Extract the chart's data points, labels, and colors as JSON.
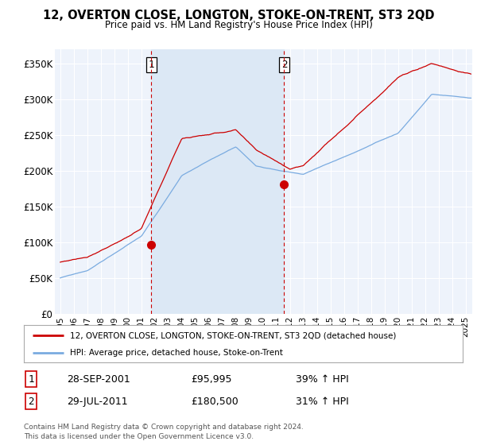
{
  "title": "12, OVERTON CLOSE, LONGTON, STOKE-ON-TRENT, ST3 2QD",
  "subtitle": "Price paid vs. HM Land Registry's House Price Index (HPI)",
  "legend_label_red": "12, OVERTON CLOSE, LONGTON, STOKE-ON-TRENT, ST3 2QD (detached house)",
  "legend_label_blue": "HPI: Average price, detached house, Stoke-on-Trent",
  "transaction1_date": "28-SEP-2001",
  "transaction1_price": "£95,995",
  "transaction1_hpi": "39% ↑ HPI",
  "transaction2_date": "29-JUL-2011",
  "transaction2_price": "£180,500",
  "transaction2_hpi": "31% ↑ HPI",
  "footer": "Contains HM Land Registry data © Crown copyright and database right 2024.\nThis data is licensed under the Open Government Licence v3.0.",
  "yticks": [
    0,
    50000,
    100000,
    150000,
    200000,
    250000,
    300000,
    350000
  ],
  "ytick_labels": [
    "£0",
    "£50K",
    "£100K",
    "£150K",
    "£200K",
    "£250K",
    "£300K",
    "£350K"
  ],
  "background_color": "#ffffff",
  "plot_bg_color": "#eef3fb",
  "grid_color": "#ffffff",
  "red_color": "#cc0000",
  "blue_color": "#7aabe0",
  "shade_color": "#dce8f5",
  "marker1_x": 2001.75,
  "marker1_y": 95995,
  "marker2_x": 2011.58,
  "marker2_y": 180500,
  "vline1_x": 2001.75,
  "vline2_x": 2011.58,
  "xlim_left": 1994.6,
  "xlim_right": 2025.5,
  "ylim_top": 370000
}
